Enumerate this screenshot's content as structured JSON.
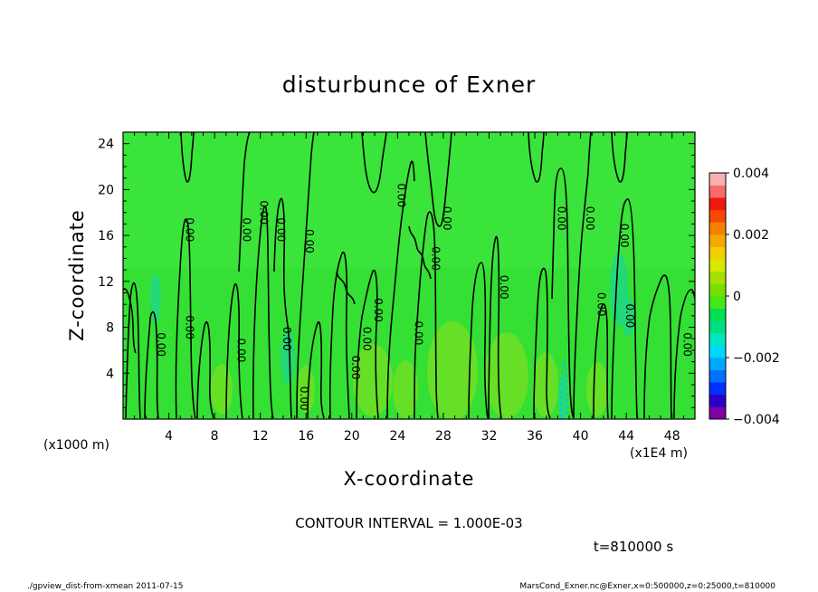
{
  "chart_data": {
    "type": "heatmap",
    "title": "disturbunce of Exner",
    "xlabel": "X-coordinate",
    "ylabel": "Z-coordinate",
    "x_unit_left": "(x1000 m)",
    "x_unit_right": "(x1E4 m)",
    "xlim": [
      0,
      50
    ],
    "ylim": [
      0,
      25
    ],
    "x_ticks": [
      4,
      8,
      12,
      16,
      20,
      24,
      28,
      32,
      36,
      40,
      44,
      48
    ],
    "y_ticks": [
      4,
      8,
      12,
      16,
      20,
      24
    ],
    "colorbar": {
      "range": [
        -0.004,
        0.004
      ],
      "tick_labels": [
        "0.004",
        "0.002",
        "0",
        "−0.002",
        "−0.004"
      ],
      "tick_values": [
        0.004,
        0.002,
        0,
        -0.002,
        -0.004
      ],
      "colors": [
        "#7f00a8",
        "#2a00c8",
        "#0030ff",
        "#0070ff",
        "#00a8ff",
        "#00d8ff",
        "#00e8c0",
        "#00e080",
        "#00e050",
        "#44e818",
        "#78e000",
        "#a8e000",
        "#d8e800",
        "#f0d000",
        "#f8a800",
        "#f88000",
        "#f84800",
        "#f01810",
        "#f86a6a",
        "#f8b0b0"
      ]
    },
    "contour_interval_text": "CONTOUR INTERVAL = 1.000E-03",
    "time_text": "t=810000 s",
    "contour_label": "0.00",
    "contour_label_positions": [
      [
        3.0,
        6.5
      ],
      [
        5.5,
        16.5
      ],
      [
        5.5,
        8.0
      ],
      [
        10.0,
        6.0
      ],
      [
        10.5,
        16.5
      ],
      [
        12.0,
        18.0
      ],
      [
        13.5,
        16.5
      ],
      [
        14.0,
        7.0
      ],
      [
        15.5,
        1.8
      ],
      [
        16.0,
        15.5
      ],
      [
        20.0,
        4.5
      ],
      [
        21.0,
        7.0
      ],
      [
        22.0,
        9.5
      ],
      [
        24.0,
        19.5
      ],
      [
        25.5,
        7.5
      ],
      [
        27.0,
        14.0
      ],
      [
        28.0,
        17.5
      ],
      [
        33.0,
        11.5
      ],
      [
        38.0,
        17.5
      ],
      [
        40.5,
        17.5
      ],
      [
        43.5,
        16.0
      ],
      [
        41.5,
        10.0
      ],
      [
        44.0,
        9.0
      ],
      [
        49.0,
        6.5
      ]
    ]
  },
  "footer": {
    "left": "./gpview_dist-from-xmean  2011-07-15",
    "right": "MarsCond_Exner.nc@Exner,x=0:500000,z=0:25000,t=810000"
  }
}
